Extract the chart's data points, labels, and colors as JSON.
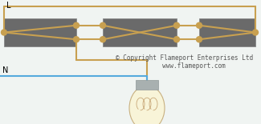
{
  "bg_color": "#f0f4f2",
  "wire_color": "#c8a050",
  "wire_lw": 1.5,
  "neutral_color": "#55aadd",
  "neutral_lw": 1.5,
  "switch_color": "#6a6a6a",
  "switch_edge": "#888888",
  "dot_color": "#c8a050",
  "copyright_text": "© Copyright Flameport Enterprises Ltd\n     www.flameport.com",
  "copyright_fontsize": 5.5,
  "L_label": "L",
  "N_label": "N",
  "label_fontsize": 7,
  "bulb_fill": "#f8f4d8",
  "bulb_edge": "#c8b080",
  "cap_color": "#a8b0b0",
  "cap_edge": "#909898"
}
